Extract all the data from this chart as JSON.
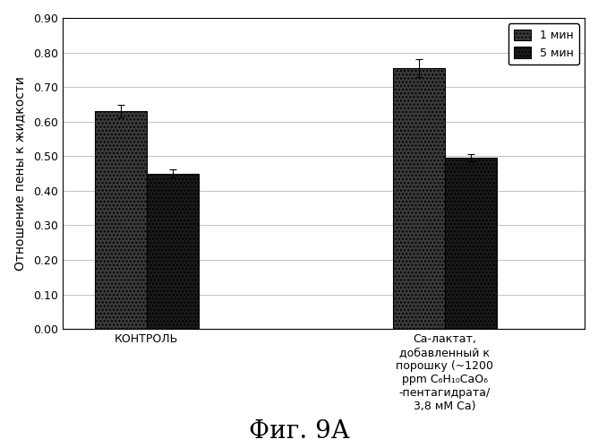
{
  "groups": [
    "КОНТРОЛЬ",
    "Ca-лактат,\nдобавленный к\nпорошку (~1200\nppm C₆H₁₀CaO₆\n-пентагидрата/\n3,8 мМ Ca)"
  ],
  "bar1_values": [
    0.63,
    0.755
  ],
  "bar2_values": [
    0.45,
    0.495
  ],
  "bar1_errors": [
    0.018,
    0.025
  ],
  "bar2_errors": [
    0.012,
    0.01
  ],
  "bar1_color": "#3a3a3a",
  "bar2_color": "#1a1a1a",
  "bar_width": 0.28,
  "group_positions": [
    1.0,
    2.6
  ],
  "ylim": [
    0.0,
    0.9
  ],
  "yticks": [
    0.0,
    0.1,
    0.2,
    0.3,
    0.4,
    0.5,
    0.6,
    0.7,
    0.8,
    0.9
  ],
  "ylabel": "Отношение пены к жидкости",
  "legend_labels": [
    "1 мин",
    "5 мин"
  ],
  "figure_title": "Фиг. 9А",
  "background_color": "#f5f2ed",
  "plot_background": "#f5f2ed"
}
